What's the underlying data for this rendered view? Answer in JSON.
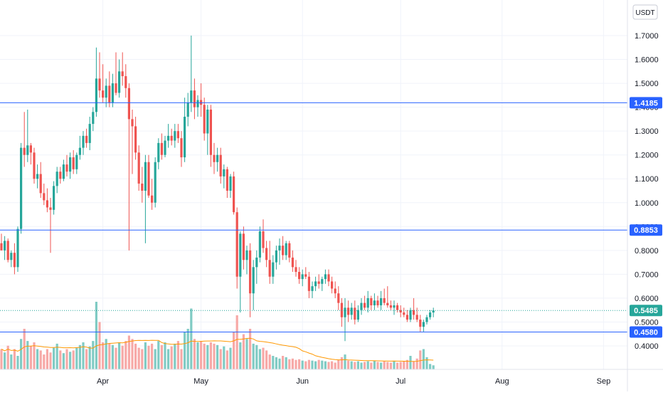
{
  "chart_data": {
    "type": "candlestick",
    "currency_label": "USDT",
    "price_axis": {
      "ticks": [
        "1.7000",
        "1.6000",
        "1.5000",
        "1.4000",
        "1.3000",
        "1.2000",
        "1.1000",
        "1.0000",
        "0.9000",
        "0.8000",
        "0.7000",
        "0.6000",
        "0.5000",
        "0.4000"
      ],
      "tick_values": [
        1.7,
        1.6,
        1.5,
        1.4,
        1.3,
        1.2,
        1.1,
        1.0,
        0.9,
        0.8,
        0.7,
        0.6,
        0.5,
        0.4
      ],
      "range": [
        0.33,
        1.8
      ]
    },
    "time_axis": {
      "ticks": [
        "Apr",
        "May",
        "Jun",
        "Jul",
        "Aug",
        "Sep"
      ],
      "tick_days": [
        31,
        61,
        92,
        122,
        153,
        184
      ]
    },
    "grid": true,
    "horizontal_lines": [
      {
        "value": 1.4185,
        "label": "1.4185",
        "color": "#2962ff"
      },
      {
        "value": 0.8853,
        "label": "0.8853",
        "color": "#2962ff"
      },
      {
        "value": 0.458,
        "label": "0.4580",
        "color": "#2962ff"
      }
    ],
    "last_price": {
      "value": 0.5485,
      "label": "0.5485",
      "color": "#26a69a"
    },
    "colors": {
      "up": "#26a69a",
      "down": "#ef5350",
      "volume_up": "#80cbc4",
      "volume_down": "#f7a9a7",
      "ma": "#ff9800",
      "line": "#2962ff"
    },
    "candles": [
      {
        "day": 0,
        "o": 0.83,
        "h": 0.87,
        "c": 0.8
      },
      {
        "day": 1,
        "o": 0.8,
        "h": 0.86,
        "l": 0.76,
        "c": 0.84
      },
      {
        "day": 2,
        "o": 0.84,
        "h": 0.85,
        "l": 0.75,
        "c": 0.76
      },
      {
        "day": 3,
        "o": 0.76,
        "h": 0.8,
        "l": 0.73,
        "c": 0.79
      },
      {
        "day": 4,
        "o": 0.79,
        "h": 0.83,
        "l": 0.7,
        "c": 0.73
      },
      {
        "day": 5,
        "o": 0.73,
        "h": 0.9,
        "l": 0.71,
        "c": 0.89
      },
      {
        "day": 6,
        "o": 0.89,
        "h": 1.25,
        "l": 0.87,
        "c": 1.23
      },
      {
        "day": 7,
        "o": 1.23,
        "h": 1.38,
        "l": 1.15,
        "c": 1.2
      },
      {
        "day": 8,
        "o": 1.2,
        "h": 1.39,
        "l": 1.17,
        "c": 1.24
      },
      {
        "day": 9,
        "o": 1.24,
        "h": 1.25,
        "l": 1.16,
        "c": 1.21
      },
      {
        "day": 10,
        "o": 1.21,
        "h": 1.23,
        "l": 1.08,
        "c": 1.1
      },
      {
        "day": 11,
        "o": 1.1,
        "h": 1.16,
        "l": 1.06,
        "c": 1.12
      },
      {
        "day": 12,
        "o": 1.12,
        "h": 1.17,
        "l": 1.02,
        "c": 1.04
      },
      {
        "day": 13,
        "o": 1.04,
        "h": 1.08,
        "l": 0.99,
        "c": 1.01
      },
      {
        "day": 14,
        "o": 1.01,
        "h": 1.06,
        "l": 0.96,
        "c": 0.98
      },
      {
        "day": 15,
        "o": 0.98,
        "h": 1.02,
        "l": 0.79,
        "c": 0.97
      },
      {
        "day": 16,
        "o": 0.97,
        "h": 1.09,
        "l": 0.95,
        "c": 1.07
      },
      {
        "day": 17,
        "o": 1.07,
        "h": 1.15,
        "l": 1.04,
        "c": 1.13
      },
      {
        "day": 18,
        "o": 1.13,
        "h": 1.15,
        "l": 1.08,
        "c": 1.1
      },
      {
        "day": 19,
        "o": 1.1,
        "h": 1.18,
        "l": 1.09,
        "c": 1.16
      },
      {
        "day": 20,
        "o": 1.16,
        "h": 1.2,
        "l": 1.11,
        "c": 1.13
      },
      {
        "day": 21,
        "o": 1.13,
        "h": 1.21,
        "l": 1.1,
        "c": 1.19
      },
      {
        "day": 22,
        "o": 1.19,
        "h": 1.22,
        "l": 1.12,
        "c": 1.14
      },
      {
        "day": 23,
        "o": 1.14,
        "h": 1.21,
        "l": 1.12,
        "c": 1.2
      },
      {
        "day": 24,
        "o": 1.2,
        "h": 1.28,
        "l": 1.18,
        "c": 1.23
      },
      {
        "day": 25,
        "o": 1.23,
        "h": 1.3,
        "l": 1.2,
        "c": 1.28
      },
      {
        "day": 26,
        "o": 1.28,
        "h": 1.31,
        "l": 1.23,
        "c": 1.25
      },
      {
        "day": 27,
        "o": 1.25,
        "h": 1.36,
        "l": 1.22,
        "c": 1.33
      },
      {
        "day": 28,
        "o": 1.33,
        "h": 1.4,
        "l": 1.3,
        "c": 1.38
      },
      {
        "day": 29,
        "o": 1.38,
        "h": 1.65,
        "l": 1.36,
        "c": 1.52
      },
      {
        "day": 30,
        "o": 1.52,
        "h": 1.63,
        "l": 1.44,
        "c": 1.47
      },
      {
        "day": 31,
        "o": 1.47,
        "h": 1.58,
        "l": 1.42,
        "c": 1.44
      },
      {
        "day": 32,
        "o": 1.44,
        "h": 1.52,
        "l": 1.4,
        "c": 1.49
      },
      {
        "day": 33,
        "o": 1.49,
        "h": 1.55,
        "l": 1.4,
        "c": 1.42
      },
      {
        "day": 34,
        "o": 1.42,
        "h": 1.54,
        "l": 1.4,
        "c": 1.5
      },
      {
        "day": 35,
        "o": 1.5,
        "h": 1.63,
        "l": 1.45,
        "c": 1.46
      },
      {
        "day": 36,
        "o": 1.46,
        "h": 1.6,
        "l": 1.44,
        "c": 1.55
      },
      {
        "day": 37,
        "o": 1.55,
        "h": 1.63,
        "l": 1.49,
        "c": 1.53
      },
      {
        "day": 38,
        "o": 1.53,
        "h": 1.58,
        "l": 1.44,
        "c": 1.48
      },
      {
        "day": 39,
        "o": 1.48,
        "h": 1.5,
        "l": 0.8,
        "c": 1.35
      },
      {
        "day": 40,
        "o": 1.35,
        "h": 1.39,
        "l": 1.12,
        "c": 1.32
      },
      {
        "day": 41,
        "o": 1.32,
        "h": 1.36,
        "l": 1.18,
        "c": 1.21
      },
      {
        "day": 42,
        "o": 1.21,
        "h": 1.24,
        "l": 1.05,
        "c": 1.08
      },
      {
        "day": 43,
        "o": 1.08,
        "h": 1.15,
        "l": 1.0,
        "c": 1.05
      },
      {
        "day": 44,
        "o": 1.05,
        "h": 1.2,
        "l": 0.83,
        "c": 1.17
      },
      {
        "day": 45,
        "o": 1.17,
        "h": 1.2,
        "l": 1.02,
        "c": 1.03
      },
      {
        "day": 46,
        "o": 1.03,
        "h": 1.1,
        "l": 0.97,
        "c": 1.0
      },
      {
        "day": 47,
        "o": 1.0,
        "h": 1.19,
        "l": 0.98,
        "c": 1.17
      },
      {
        "day": 48,
        "o": 1.17,
        "h": 1.27,
        "l": 1.14,
        "c": 1.25
      },
      {
        "day": 49,
        "o": 1.25,
        "h": 1.29,
        "l": 1.18,
        "c": 1.2
      },
      {
        "day": 50,
        "o": 1.2,
        "h": 1.28,
        "l": 1.19,
        "c": 1.26
      },
      {
        "day": 51,
        "o": 1.26,
        "h": 1.33,
        "l": 1.23,
        "c": 1.28
      },
      {
        "day": 52,
        "o": 1.28,
        "h": 1.31,
        "l": 1.24,
        "c": 1.26
      },
      {
        "day": 53,
        "o": 1.26,
        "h": 1.33,
        "l": 1.23,
        "c": 1.3
      },
      {
        "day": 54,
        "o": 1.3,
        "h": 1.33,
        "l": 1.25,
        "c": 1.27
      },
      {
        "day": 55,
        "o": 1.27,
        "h": 1.3,
        "l": 1.15,
        "c": 1.19
      },
      {
        "day": 56,
        "o": 1.19,
        "h": 1.44,
        "l": 1.17,
        "c": 1.36
      },
      {
        "day": 57,
        "o": 1.36,
        "h": 1.46,
        "l": 1.32,
        "c": 1.42
      },
      {
        "day": 58,
        "o": 1.42,
        "h": 1.7,
        "l": 1.38,
        "c": 1.47
      },
      {
        "day": 59,
        "o": 1.47,
        "h": 1.52,
        "l": 1.35,
        "c": 1.4
      },
      {
        "day": 60,
        "o": 1.4,
        "h": 1.45,
        "l": 1.36,
        "c": 1.43
      },
      {
        "day": 61,
        "o": 1.43,
        "h": 1.5,
        "l": 1.36,
        "c": 1.41
      },
      {
        "day": 62,
        "o": 1.41,
        "h": 1.44,
        "l": 1.26,
        "c": 1.29
      },
      {
        "day": 63,
        "o": 1.29,
        "h": 1.41,
        "l": 1.2,
        "c": 1.39
      },
      {
        "day": 64,
        "o": 1.39,
        "h": 1.41,
        "l": 1.15,
        "c": 1.2
      },
      {
        "day": 65,
        "o": 1.2,
        "h": 1.25,
        "l": 1.12,
        "c": 1.17
      },
      {
        "day": 66,
        "o": 1.17,
        "h": 1.23,
        "l": 1.13,
        "c": 1.2
      },
      {
        "day": 67,
        "o": 1.2,
        "h": 1.23,
        "l": 1.08,
        "c": 1.11
      },
      {
        "day": 68,
        "o": 1.11,
        "h": 1.16,
        "l": 1.06,
        "c": 1.14
      },
      {
        "day": 69,
        "o": 1.14,
        "h": 1.15,
        "l": 1.02,
        "c": 1.05
      },
      {
        "day": 70,
        "o": 1.05,
        "h": 1.12,
        "l": 1.02,
        "c": 1.11
      },
      {
        "day": 71,
        "o": 1.11,
        "h": 1.13,
        "l": 0.95,
        "c": 0.96
      },
      {
        "day": 72,
        "o": 0.96,
        "h": 0.98,
        "l": 0.64,
        "c": 0.69
      },
      {
        "day": 73,
        "o": 0.69,
        "h": 0.88,
        "l": 0.54,
        "c": 0.87
      },
      {
        "day": 74,
        "o": 0.87,
        "h": 0.9,
        "l": 0.72,
        "c": 0.76
      },
      {
        "day": 75,
        "o": 0.76,
        "h": 0.82,
        "l": 0.7,
        "c": 0.8
      },
      {
        "day": 76,
        "o": 0.8,
        "h": 0.83,
        "l": 0.52,
        "c": 0.62
      },
      {
        "day": 77,
        "o": 0.62,
        "h": 0.76,
        "l": 0.55,
        "c": 0.73
      },
      {
        "day": 78,
        "o": 0.73,
        "h": 0.8,
        "l": 0.66,
        "c": 0.77
      },
      {
        "day": 79,
        "o": 0.77,
        "h": 0.9,
        "l": 0.75,
        "c": 0.88
      },
      {
        "day": 80,
        "o": 0.88,
        "h": 0.93,
        "l": 0.79,
        "c": 0.81
      },
      {
        "day": 81,
        "o": 0.81,
        "h": 0.84,
        "l": 0.73,
        "c": 0.76
      },
      {
        "day": 82,
        "o": 0.76,
        "h": 0.84,
        "l": 0.66,
        "c": 0.69
      },
      {
        "day": 83,
        "o": 0.69,
        "h": 0.78,
        "l": 0.66,
        "c": 0.75
      },
      {
        "day": 84,
        "o": 0.75,
        "h": 0.82,
        "l": 0.72,
        "c": 0.8
      },
      {
        "day": 85,
        "o": 0.8,
        "h": 0.85,
        "l": 0.74,
        "c": 0.82
      },
      {
        "day": 86,
        "o": 0.82,
        "h": 0.86,
        "l": 0.76,
        "c": 0.78
      },
      {
        "day": 87,
        "o": 0.78,
        "h": 0.84,
        "l": 0.76,
        "c": 0.83
      },
      {
        "day": 88,
        "o": 0.83,
        "h": 0.84,
        "l": 0.75,
        "c": 0.77
      },
      {
        "day": 89,
        "o": 0.77,
        "h": 0.8,
        "l": 0.71,
        "c": 0.73
      },
      {
        "day": 90,
        "o": 0.73,
        "h": 0.76,
        "l": 0.69,
        "c": 0.71
      },
      {
        "day": 91,
        "o": 0.71,
        "h": 0.73,
        "l": 0.66,
        "c": 0.68
      },
      {
        "day": 92,
        "o": 0.68,
        "h": 0.72,
        "l": 0.65,
        "c": 0.7
      },
      {
        "day": 93,
        "o": 0.7,
        "h": 0.73,
        "l": 0.68,
        "c": 0.69
      },
      {
        "day": 94,
        "o": 0.69,
        "h": 0.71,
        "l": 0.6,
        "c": 0.63
      },
      {
        "day": 95,
        "o": 0.63,
        "h": 0.67,
        "l": 0.6,
        "c": 0.65
      },
      {
        "day": 96,
        "o": 0.65,
        "h": 0.69,
        "l": 0.63,
        "c": 0.67
      },
      {
        "day": 97,
        "o": 0.67,
        "h": 0.7,
        "l": 0.64,
        "c": 0.66
      },
      {
        "day": 98,
        "o": 0.66,
        "h": 0.69,
        "l": 0.63,
        "c": 0.68
      },
      {
        "day": 99,
        "o": 0.68,
        "h": 0.72,
        "l": 0.66,
        "c": 0.7
      },
      {
        "day": 100,
        "o": 0.7,
        "h": 0.72,
        "l": 0.65,
        "c": 0.67
      },
      {
        "day": 101,
        "o": 0.67,
        "h": 0.69,
        "l": 0.62,
        "c": 0.64
      },
      {
        "day": 102,
        "o": 0.64,
        "h": 0.67,
        "l": 0.6,
        "c": 0.62
      },
      {
        "day": 103,
        "o": 0.62,
        "h": 0.65,
        "l": 0.55,
        "c": 0.58
      },
      {
        "day": 104,
        "o": 0.58,
        "h": 0.6,
        "l": 0.48,
        "c": 0.52
      },
      {
        "day": 105,
        "o": 0.52,
        "h": 0.6,
        "l": 0.42,
        "c": 0.56
      },
      {
        "day": 106,
        "o": 0.56,
        "h": 0.59,
        "l": 0.5,
        "c": 0.53
      },
      {
        "day": 107,
        "o": 0.53,
        "h": 0.58,
        "l": 0.51,
        "c": 0.56
      },
      {
        "day": 108,
        "o": 0.56,
        "h": 0.59,
        "l": 0.49,
        "c": 0.51
      },
      {
        "day": 109,
        "o": 0.51,
        "h": 0.57,
        "l": 0.5,
        "c": 0.55
      },
      {
        "day": 110,
        "o": 0.55,
        "h": 0.6,
        "l": 0.53,
        "c": 0.58
      },
      {
        "day": 111,
        "o": 0.58,
        "h": 0.61,
        "l": 0.55,
        "c": 0.56
      },
      {
        "day": 112,
        "o": 0.56,
        "h": 0.63,
        "l": 0.54,
        "c": 0.6
      },
      {
        "day": 113,
        "o": 0.6,
        "h": 0.61,
        "l": 0.55,
        "c": 0.57
      },
      {
        "day": 114,
        "o": 0.57,
        "h": 0.62,
        "l": 0.55,
        "c": 0.59
      },
      {
        "day": 115,
        "o": 0.59,
        "h": 0.61,
        "l": 0.56,
        "c": 0.57
      },
      {
        "day": 116,
        "o": 0.57,
        "h": 0.63,
        "l": 0.55,
        "c": 0.6
      },
      {
        "day": 117,
        "o": 0.6,
        "h": 0.64,
        "l": 0.57,
        "c": 0.58
      },
      {
        "day": 118,
        "o": 0.58,
        "h": 0.65,
        "l": 0.56,
        "c": 0.57
      },
      {
        "day": 119,
        "o": 0.57,
        "h": 0.59,
        "l": 0.55,
        "c": 0.56
      },
      {
        "day": 120,
        "o": 0.56,
        "h": 0.59,
        "l": 0.53,
        "c": 0.57
      },
      {
        "day": 121,
        "o": 0.57,
        "h": 0.58,
        "l": 0.54,
        "c": 0.55
      },
      {
        "day": 122,
        "o": 0.55,
        "h": 0.57,
        "l": 0.52,
        "c": 0.54
      },
      {
        "day": 123,
        "o": 0.54,
        "h": 0.56,
        "l": 0.52,
        "c": 0.53
      },
      {
        "day": 124,
        "o": 0.53,
        "h": 0.55,
        "l": 0.5,
        "c": 0.51
      },
      {
        "day": 125,
        "o": 0.51,
        "h": 0.56,
        "l": 0.5,
        "c": 0.55
      },
      {
        "day": 126,
        "o": 0.55,
        "h": 0.6,
        "l": 0.51,
        "c": 0.53
      },
      {
        "day": 127,
        "o": 0.53,
        "h": 0.56,
        "l": 0.5,
        "c": 0.51
      },
      {
        "day": 128,
        "o": 0.51,
        "h": 0.53,
        "l": 0.46,
        "c": 0.48
      },
      {
        "day": 129,
        "o": 0.48,
        "h": 0.51,
        "l": 0.46,
        "c": 0.5
      },
      {
        "day": 130,
        "o": 0.5,
        "h": 0.53,
        "l": 0.49,
        "c": 0.52
      },
      {
        "day": 131,
        "o": 0.52,
        "h": 0.55,
        "l": 0.51,
        "c": 0.54
      },
      {
        "day": 132,
        "o": 0.54,
        "h": 0.56,
        "l": 0.52,
        "c": 0.5485
      }
    ],
    "volume": [
      0.3,
      0.25,
      0.35,
      0.22,
      0.3,
      0.2,
      0.45,
      0.6,
      0.42,
      0.35,
      0.4,
      0.3,
      0.28,
      0.22,
      0.3,
      0.25,
      0.32,
      0.38,
      0.28,
      0.24,
      0.3,
      0.26,
      0.28,
      0.32,
      0.36,
      0.4,
      0.3,
      0.34,
      0.42,
      1.0,
      0.7,
      0.4,
      0.45,
      0.38,
      0.36,
      0.32,
      0.4,
      0.35,
      0.42,
      0.5,
      0.45,
      0.38,
      0.32,
      0.3,
      0.4,
      0.35,
      0.38,
      0.3,
      0.42,
      0.36,
      0.4,
      0.3,
      0.34,
      0.38,
      0.42,
      0.3,
      0.55,
      0.6,
      0.9,
      0.45,
      0.4,
      0.42,
      0.38,
      0.36,
      0.4,
      0.38,
      0.36,
      0.3,
      0.34,
      0.28,
      0.32,
      0.55,
      0.8,
      0.4,
      0.52,
      0.45,
      0.6,
      0.38,
      0.36,
      0.3,
      0.32,
      0.28,
      0.22,
      0.2,
      0.18,
      0.16,
      0.2,
      0.18,
      0.15,
      0.16,
      0.14,
      0.15,
      0.13,
      0.12,
      0.14,
      0.13,
      0.12,
      0.14,
      0.13,
      0.12,
      0.11,
      0.12,
      0.1,
      0.14,
      0.18,
      0.22,
      0.13,
      0.12,
      0.11,
      0.12,
      0.1,
      0.11,
      0.12,
      0.1,
      0.13,
      0.11,
      0.1,
      0.12,
      0.11,
      0.1,
      0.12,
      0.1,
      0.11,
      0.12,
      0.14,
      0.2,
      0.12,
      0.16,
      0.28,
      0.3,
      0.18,
      0.08,
      0.06
    ]
  }
}
